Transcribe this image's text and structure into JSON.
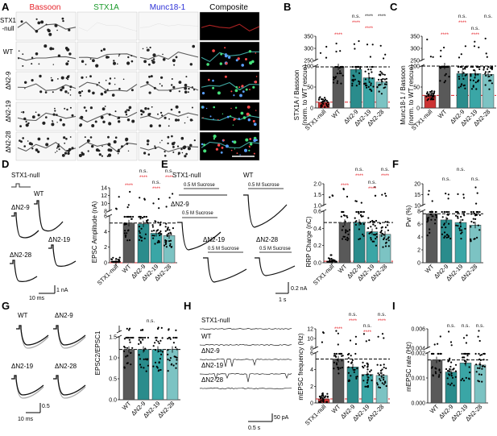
{
  "colors": {
    "bassoon": "#e6232a",
    "stx1a": "#1a9a2a",
    "munc": "#2b2fd6",
    "wt_bar": "#595959",
    "dn29": "#2a8c8c",
    "dn219": "#3aa6a6",
    "dn228": "#7cc3c3",
    "ref_line": "#000000",
    "null_line": "#e6232a"
  },
  "panel_letters": [
    "A",
    "B",
    "C",
    "D",
    "E",
    "F",
    "G",
    "H",
    "I"
  ],
  "panelA": {
    "headers": [
      "Bassoon",
      "STX1A",
      "Munc18-1",
      "Composite"
    ],
    "rows": [
      "STX1\n-null",
      "WT",
      "ΔN2-9",
      "ΔN2-19",
      "ΔN2-28"
    ],
    "row1_line1": "STX1",
    "row1_line2": "-null"
  },
  "groups_all": [
    "STX1-null",
    "WT",
    "ΔN2-9",
    "ΔN2-19",
    "ΔN2-28"
  ],
  "groups_wt": [
    "WT",
    "ΔN2-9",
    "ΔN2-19",
    "ΔN2-28"
  ],
  "panelB": {
    "ylabel_1": "STX1A / Bassoon",
    "ylabel_2": "(norm. to WT rescue)",
    "ticks_low": [
      "0",
      "50",
      "100"
    ],
    "ticks_high": [
      "250",
      "300",
      "350"
    ],
    "sig_red": "****",
    "ns": "n.s."
  },
  "panelC": {
    "ylabel_1": "Munc18-1 / Bassoon",
    "ylabel_2": "(norm. to WT rescue)",
    "ticks_low": [
      "0",
      "50",
      "100"
    ],
    "ticks_high": [
      "250",
      "300",
      "350"
    ]
  },
  "panelD": {
    "title": "STX1-null",
    "wt": "WT",
    "labels": [
      "ΔN2-9",
      "ΔN2-19",
      "ΔN2-28"
    ],
    "scale_x": "10 ms",
    "scale_y": "1 nA",
    "ylabel": "EPSC Amplitude (nA)",
    "ticks_low": [
      "0",
      "2",
      "4",
      "6"
    ],
    "ticks_high": [
      "8",
      "10",
      "12",
      "14"
    ]
  },
  "panelE": {
    "title": "STX1-null",
    "wt": "WT",
    "sucrose": "0.5 M Sucrose",
    "labels": [
      "ΔN2-9",
      "ΔN2-19",
      "ΔN2-28"
    ],
    "scale_x": "1 s",
    "scale_y": "0.2 nA",
    "ylabel": "RRP Charge (nC)",
    "ticks_low": [
      "0.0",
      "0.2",
      "0.4",
      "0.6"
    ],
    "ticks_high": [
      "1.0",
      "1.5",
      "2.0"
    ]
  },
  "panelF": {
    "ylabel": "Pvr (%)",
    "ticks_low": [
      "0",
      "2",
      "4",
      "6",
      "8"
    ],
    "ticks_high": [
      "10",
      "15",
      "20"
    ]
  },
  "panelG": {
    "labels": [
      "WT",
      "ΔN2-9",
      "ΔN2-19",
      "ΔN2-28"
    ],
    "scale_x": "10 ms",
    "scale_y": "0.5",
    "ylabel": "EPSC2/EPSC1",
    "ticks_low": [
      "0.0",
      "0.5",
      "1.0",
      "1.5"
    ]
  },
  "panelH": {
    "labels": [
      "STX1-null",
      "WT",
      "ΔN2-9",
      "ΔN2-19",
      "ΔN2-28"
    ],
    "scale_x": "0.5 s",
    "scale_y": "50 pA",
    "ylabel": "mEPSC frequency (Hz)",
    "ticks_low": [
      "0",
      "2",
      "4",
      "6"
    ],
    "ticks_high": [
      "8",
      "10",
      "12"
    ]
  },
  "panelI": {
    "ylabel": "mEPSC rate (Hz)",
    "ticks_low": [
      "0.000",
      "0.001",
      "0.002"
    ],
    "ticks_high": [
      "0.004",
      "0.006"
    ]
  }
}
